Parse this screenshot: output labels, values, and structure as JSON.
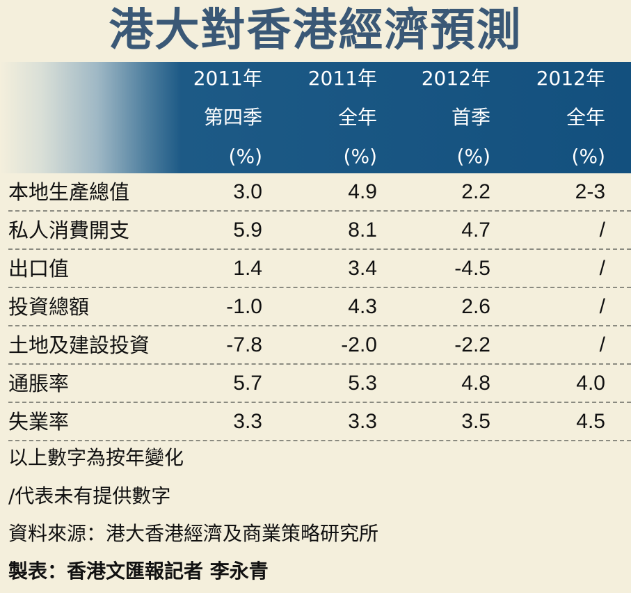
{
  "title": "港大對香港經濟預測",
  "columns": [
    {
      "year": "2011年",
      "period": "第四季",
      "unit": "(%)"
    },
    {
      "year": "2011年",
      "period": "全年",
      "unit": "(%)"
    },
    {
      "year": "2012年",
      "period": "首季",
      "unit": "(%)"
    },
    {
      "year": "2012年",
      "period": "全年",
      "unit": "(%)"
    }
  ],
  "rows": [
    {
      "label": "本地生產總值",
      "values": [
        "3.0",
        "4.9",
        "2.2",
        "2-3"
      ]
    },
    {
      "label": "私人消費開支",
      "values": [
        "5.9",
        "8.1",
        "4.7",
        "/"
      ]
    },
    {
      "label": "出口值",
      "values": [
        "1.4",
        "3.4",
        "-4.5",
        "/"
      ]
    },
    {
      "label": "投資總額",
      "values": [
        "-1.0",
        "4.3",
        "2.6",
        "/"
      ]
    },
    {
      "label": "土地及建設投資",
      "values": [
        "-7.8",
        "-2.0",
        "-2.2",
        "/"
      ]
    },
    {
      "label": "通脹率",
      "values": [
        "5.7",
        "5.3",
        "4.8",
        "4.0"
      ]
    },
    {
      "label": "失業率",
      "values": [
        "3.3",
        "3.3",
        "3.5",
        "4.5"
      ]
    }
  ],
  "notes": {
    "note1": "以上數字為按年變化",
    "note2": "/代表未有提供數字",
    "source": "資料來源：港大香港經濟及商業策略研究所",
    "credit": "製表：香港文匯報記者 李永青"
  },
  "colors": {
    "header_blue": "#13507e",
    "title_color": "#3a5876",
    "background": "#f4efdc"
  }
}
